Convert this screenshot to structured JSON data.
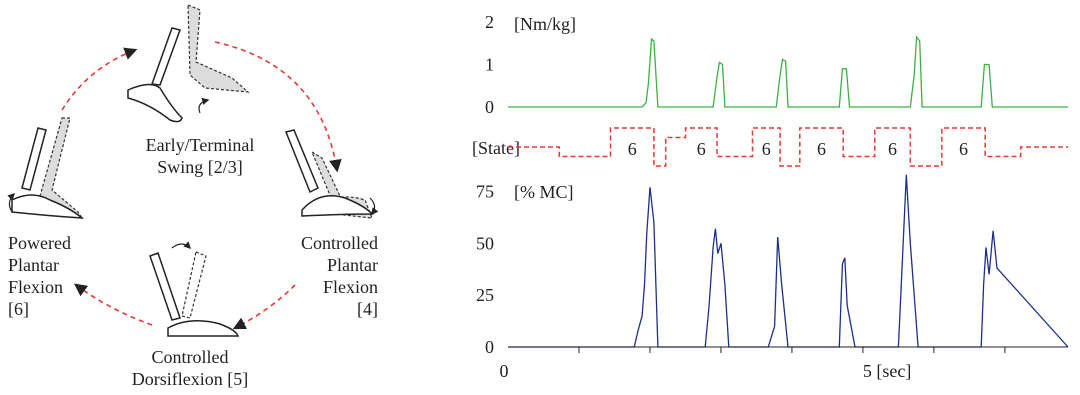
{
  "diagram": {
    "phases": {
      "swing": [
        "Early/Terminal",
        "Swing [2/3]"
      ],
      "cpf": [
        "Controlled",
        "Plantar",
        "Flexion",
        "[4]"
      ],
      "cd": [
        "Controlled",
        "Dorsiflexion [5]"
      ],
      "ppf": [
        "Powered",
        "Plantar",
        "Flexion",
        "[6]"
      ]
    },
    "colors": {
      "arrow": "#e53935",
      "bone": "#222222",
      "ghost": "#dddddd"
    }
  },
  "chart_data": [
    {
      "type": "line",
      "ylabel": "[Nm/kg]",
      "yticks": [
        0,
        1,
        2
      ],
      "ylim": [
        0,
        2
      ],
      "color": "#3cb043",
      "x": [
        0,
        1.7,
        1.75,
        1.78,
        1.82,
        1.85,
        1.9,
        2.0,
        2.6,
        2.65,
        2.68,
        2.72,
        2.75,
        3.4,
        3.45,
        3.48,
        3.52,
        3.55,
        4.2,
        4.24,
        4.29,
        4.33,
        5.1,
        5.15,
        5.18,
        5.22,
        5.25,
        6.0,
        6.04,
        6.1,
        6.14,
        7.1
      ],
      "y": [
        0,
        0,
        0.1,
        0.55,
        1.6,
        1.55,
        0,
        0,
        0,
        0.7,
        1.05,
        1.0,
        0,
        0,
        0.75,
        1.12,
        1.08,
        0,
        0,
        0.9,
        0.9,
        0,
        0,
        0.75,
        1.65,
        1.55,
        0,
        0,
        1.0,
        1.0,
        0,
        0
      ]
    },
    {
      "type": "line",
      "ylabel": "[State]",
      "color": "#e53935",
      "x": [
        0,
        0.65,
        0.65,
        1.3,
        1.3,
        1.85,
        1.85,
        2.0,
        2.0,
        2.25,
        2.25,
        2.65,
        2.65,
        3.1,
        3.1,
        3.45,
        3.45,
        3.7,
        3.7,
        4.25,
        4.25,
        4.65,
        4.65,
        5.1,
        5.1,
        5.5,
        5.5,
        6.05,
        6.05,
        6.5,
        6.5,
        7.1
      ],
      "y": [
        4,
        4,
        3,
        3,
        6,
        6,
        2,
        2,
        5,
        5,
        6,
        6,
        3,
        3,
        6,
        6,
        2,
        2,
        6,
        6,
        3,
        3,
        6,
        6,
        2,
        2,
        6,
        6,
        3,
        3,
        4,
        4
      ],
      "annotations": [
        "6",
        "6",
        "6",
        "6",
        "6",
        "6"
      ]
    },
    {
      "type": "line",
      "ylabel": "[% MC]",
      "yticks": [
        0,
        25,
        50,
        75
      ],
      "ylim": [
        0,
        80
      ],
      "xticks": [
        "0",
        "5 [sec]"
      ],
      "color": "#1c2f8a",
      "x": [
        0,
        1.6,
        1.65,
        1.7,
        1.73,
        1.76,
        1.8,
        1.85,
        1.9,
        2.0,
        2.5,
        2.55,
        2.6,
        2.63,
        2.66,
        2.7,
        2.75,
        2.8,
        3.3,
        3.38,
        3.42,
        3.47,
        3.55,
        4.2,
        4.24,
        4.27,
        4.3,
        4.4,
        4.95,
        5.0,
        5.05,
        5.1,
        5.2,
        6.0,
        6.03,
        6.06,
        6.1,
        6.15,
        6.2,
        7.1
      ],
      "y": [
        0,
        0,
        8,
        15,
        30,
        55,
        77,
        60,
        0,
        0,
        0,
        20,
        48,
        57,
        45,
        50,
        30,
        0,
        0,
        10,
        53,
        30,
        0,
        0,
        40,
        43,
        20,
        0,
        0,
        42,
        83,
        50,
        0,
        0,
        30,
        48,
        35,
        56,
        38,
        0
      ]
    }
  ]
}
